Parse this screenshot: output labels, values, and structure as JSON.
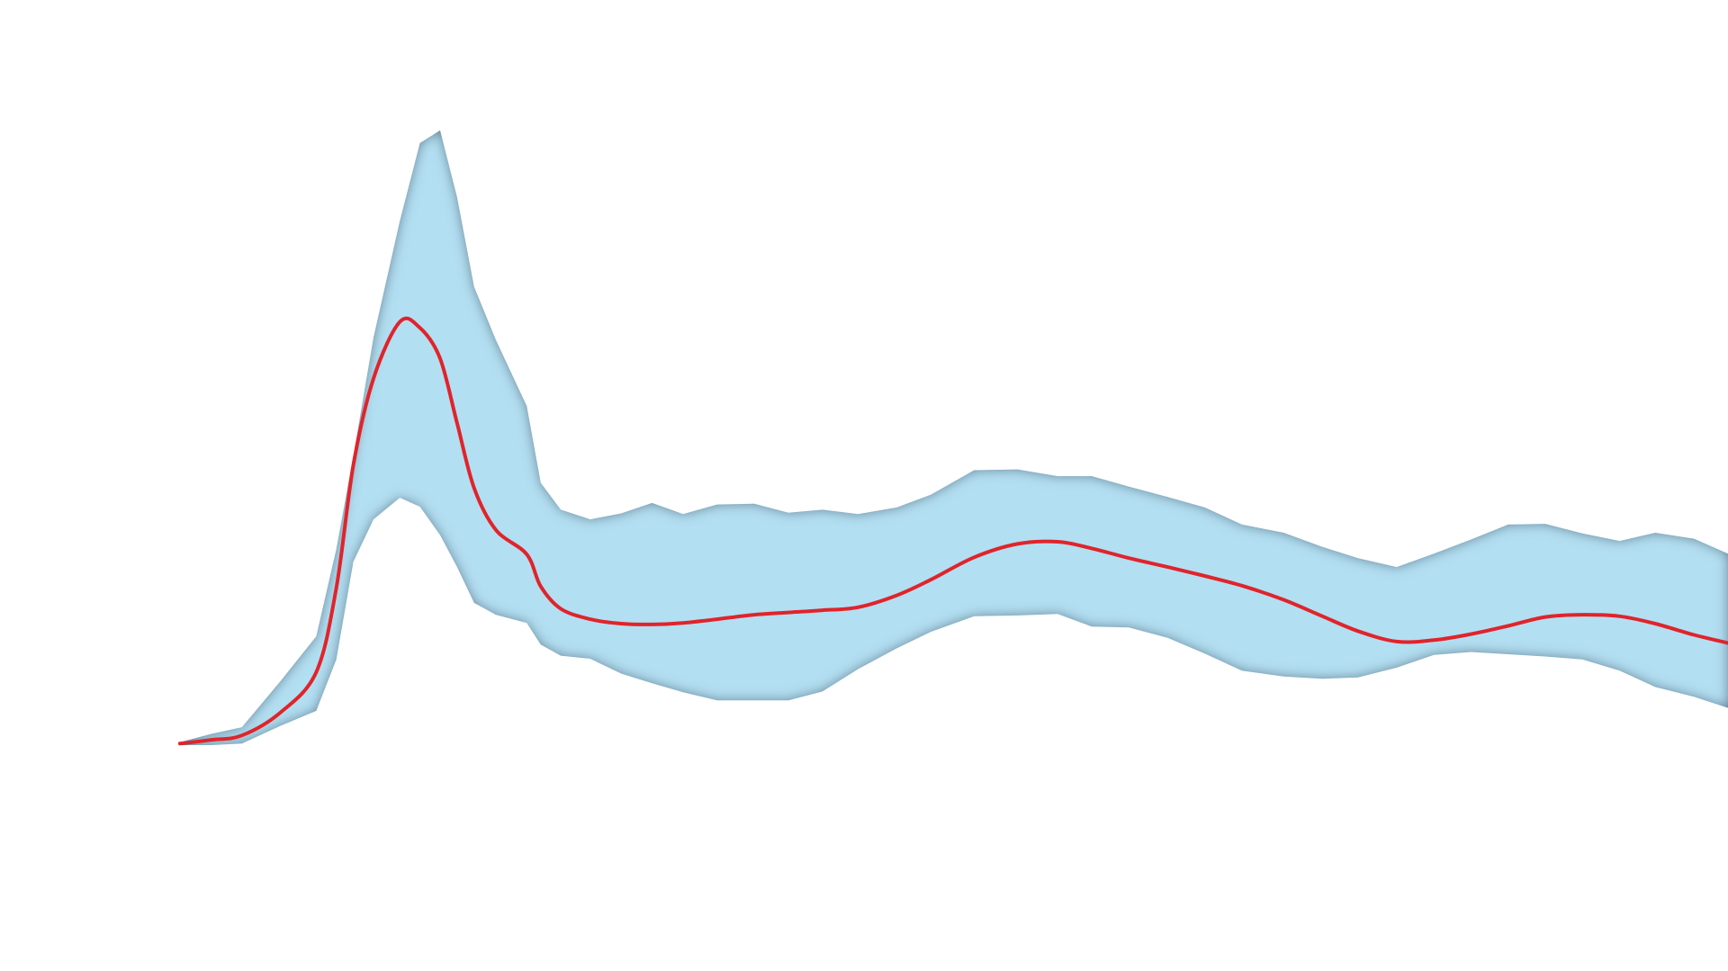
{
  "chart_data": {
    "type": "area",
    "title": "",
    "xlabel": "",
    "ylabel": "",
    "grid": false,
    "legend": "none",
    "xlim": [
      0,
      100
    ],
    "ylim": [
      0,
      100
    ],
    "x": [
      0,
      2,
      4,
      6.5,
      8.8,
      10.1,
      11.2,
      12.5,
      14.2,
      15.5,
      16.8,
      17.9,
      19.0,
      20.4,
      22.4,
      23.3,
      24.6,
      26.5,
      28.5,
      30.5,
      32.5,
      34.7,
      37.1,
      39.3,
      41.5,
      43.8,
      46.3,
      48.5,
      51.3,
      54.1,
      56.7,
      58.9,
      61.3,
      63.8,
      66.2,
      68.6,
      71.3,
      73.8,
      76.1,
      78.6,
      81.0,
      83.4,
      85.8,
      88.2,
      90.6,
      93.0,
      95.3,
      97.8,
      100
    ],
    "series": [
      {
        "role": "upper",
        "color": "#b3dff2",
        "values": [
          0.4,
          1.5,
          2.4,
          8.6,
          14.6,
          26.3,
          38.8,
          54.7,
          70.3,
          80.8,
          82.5,
          73.5,
          61.5,
          54.4,
          45.5,
          35.2,
          31.6,
          30.3,
          31.1,
          32.5,
          31.0,
          32.3,
          32.4,
          31.2,
          31.6,
          31.0,
          31.9,
          33.6,
          36.9,
          37.0,
          36.1,
          36.1,
          34.7,
          33.3,
          31.9,
          29.6,
          28.5,
          26.6,
          25.1,
          23.9,
          25.7,
          27.6,
          29.6,
          29.7,
          28.4,
          27.4,
          28.5,
          27.7,
          25.7
        ]
      },
      {
        "role": "lower",
        "color": "#b3dff2",
        "values": [
          0,
          0,
          0.2,
          2.6,
          4.6,
          11.5,
          24.6,
          30.3,
          33.2,
          32.0,
          28.2,
          23.9,
          19.1,
          17.5,
          16.4,
          13.5,
          12.0,
          11.6,
          9.6,
          8.3,
          7.1,
          6.0,
          6.0,
          6.0,
          7.2,
          10.2,
          13.0,
          15.2,
          17.3,
          17.4,
          17.6,
          15.9,
          15.8,
          14.4,
          12.3,
          10.0,
          9.2,
          8.9,
          9.1,
          10.4,
          12.1,
          12.5,
          12.2,
          11.9,
          11.5,
          10.0,
          7.8,
          6.5,
          5.0
        ]
      },
      {
        "role": "mean",
        "color": "#e0242b",
        "values": [
          0.2,
          0.7,
          1.3,
          4.4,
          9.8,
          21.1,
          37.6,
          49.2,
          56.8,
          56.0,
          51.9,
          43.2,
          34.5,
          28.9,
          25.6,
          21.3,
          18.3,
          16.9,
          16.3,
          16.2,
          16.4,
          16.9,
          17.5,
          17.8,
          18.1,
          18.5,
          20.1,
          22.2,
          25.2,
          27.0,
          27.3,
          26.4,
          25.1,
          23.9,
          22.7,
          21.4,
          19.5,
          17.3,
          15.3,
          13.9,
          14.1,
          14.9,
          16.0,
          17.2,
          17.5,
          17.3,
          16.3,
          14.8,
          13.7
        ]
      }
    ]
  }
}
